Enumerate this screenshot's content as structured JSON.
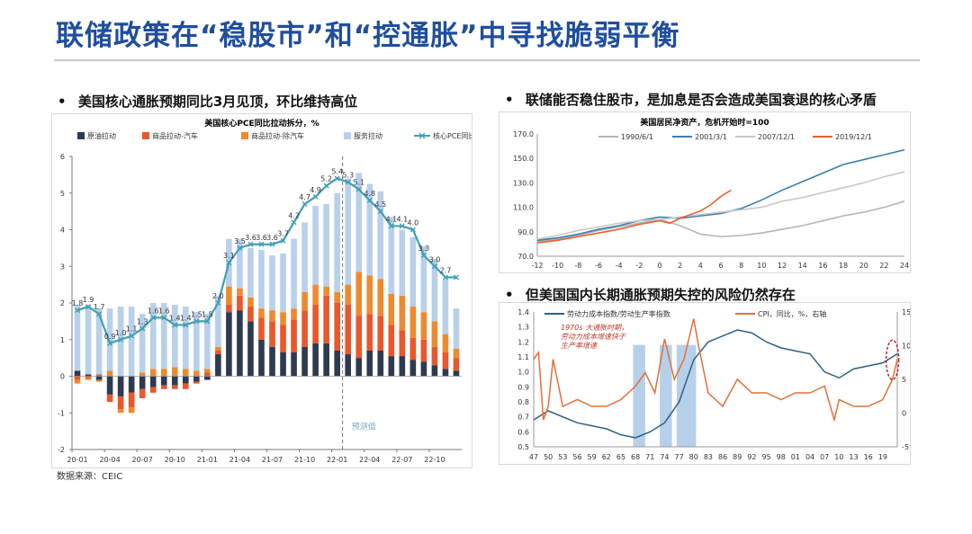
{
  "page": {
    "title": "联储政策在“稳股市”和“控通胀”中寻找脆弱平衡",
    "left_bullet": "美国核心通胀预期同比3月见顶，环比维持高位",
    "right_top_bullet": "联储能否稳住股市，是加息是否会造成美国衰退的核心矛盾",
    "right_bottom_bullet": "但美国国内长期通胀预期失控的风险仍然存在",
    "source": "数据来源：CEIC",
    "bullet_char": "•"
  },
  "chart_data": [
    {
      "type": "bar",
      "stacked": true,
      "title": "美国核心PCE同比拉动拆分，%",
      "categories": [
        "20-01",
        "20-02",
        "20-03",
        "20-04",
        "20-05",
        "20-06",
        "20-07",
        "20-08",
        "20-09",
        "20-10",
        "20-11",
        "20-12",
        "21-01",
        "21-02",
        "21-03",
        "21-04",
        "21-05",
        "21-06",
        "21-07",
        "21-08",
        "21-09",
        "21-10",
        "21-11",
        "21-12",
        "22-01",
        "22-02",
        "22-03",
        "22-04",
        "22-05",
        "22-06",
        "22-07",
        "22-08",
        "22-09",
        "22-10",
        "22-11",
        "22-12"
      ],
      "x_tick_labels": [
        "20-01",
        "20-04",
        "20-07",
        "20-10",
        "21-01",
        "21-04",
        "21-07",
        "21-10",
        "22-01",
        "22-04",
        "22-07",
        "22-10"
      ],
      "ylim": [
        -2,
        6
      ],
      "y_ticks": [
        -2,
        -1,
        0,
        1,
        2,
        3,
        4,
        5,
        6
      ],
      "legend": "top",
      "annotation": "预测值",
      "forecast_from": "22-02",
      "series": [
        {
          "name": "原油拉动",
          "color": "#2e3a4f",
          "values": [
            0.15,
            0.05,
            -0.1,
            -0.5,
            -0.55,
            -0.45,
            -0.35,
            -0.3,
            -0.25,
            -0.25,
            -0.2,
            -0.15,
            -0.1,
            0.6,
            1.75,
            1.8,
            1.5,
            1.0,
            0.8,
            0.65,
            0.65,
            0.8,
            0.9,
            0.9,
            0.7,
            0.6,
            0.5,
            0.7,
            0.7,
            0.55,
            0.55,
            0.45,
            0.4,
            0.3,
            0.2,
            0.15
          ]
        },
        {
          "name": "商品拉动-汽车",
          "color": "#e9572b",
          "values": [
            -0.1,
            -0.05,
            0.05,
            -0.2,
            -0.35,
            -0.4,
            -0.25,
            -0.15,
            -0.1,
            -0.1,
            -0.15,
            -0.05,
            0.1,
            0.1,
            0.2,
            0.4,
            0.4,
            0.6,
            0.7,
            0.75,
            0.9,
            1.0,
            1.05,
            1.3,
            1.3,
            1.35,
            1.15,
            1.0,
            0.95,
            0.85,
            0.7,
            0.6,
            0.6,
            0.5,
            0.45,
            0.35
          ]
        },
        {
          "name": "商品拉动-除汽车",
          "color": "#ee8a2e",
          "values": [
            -0.1,
            -0.05,
            -0.05,
            0.15,
            -0.1,
            -0.15,
            0.1,
            0.2,
            0.2,
            0.25,
            0.2,
            0.15,
            0.1,
            0.1,
            0.5,
            0.2,
            0.25,
            0.25,
            0.3,
            0.35,
            0.3,
            0.5,
            0.55,
            0.25,
            0.3,
            0.55,
            1.2,
            1.05,
            1.0,
            0.85,
            0.95,
            0.85,
            0.75,
            0.7,
            0.5,
            0.25
          ]
        },
        {
          "name": "服务拉动",
          "color": "#b8d0ea",
          "values": [
            1.8,
            1.9,
            1.8,
            1.7,
            1.9,
            1.9,
            1.6,
            1.8,
            1.8,
            1.7,
            1.7,
            1.6,
            1.5,
            1.4,
            1.3,
            1.35,
            1.35,
            1.6,
            1.5,
            1.6,
            1.9,
            1.9,
            2.15,
            2.25,
            2.7,
            2.9,
            2.7,
            2.5,
            2.4,
            2.1,
            1.8,
            1.9,
            1.8,
            1.7,
            1.5,
            1.1
          ]
        },
        {
          "name": "核心PCE同比",
          "color": "#3f9fb4",
          "type": "line",
          "values": [
            1.8,
            1.9,
            1.7,
            0.9,
            1.0,
            1.1,
            1.3,
            1.6,
            1.6,
            1.4,
            1.4,
            1.5,
            1.5,
            2.0,
            3.1,
            3.5,
            3.6,
            3.6,
            3.6,
            3.7,
            4.2,
            4.7,
            4.9,
            5.2,
            5.4,
            5.3,
            5.1,
            4.8,
            4.5,
            4.1,
            4.1,
            4.0,
            3.3,
            3.0,
            2.7,
            2.7
          ],
          "labels": [
            "1.8",
            "1.9",
            "1.7",
            "0.9",
            "1.0",
            "1.1",
            "1.3",
            "1.6",
            "1.6",
            "1.4",
            "1.4",
            "1.5",
            "1.5",
            "2.0",
            "3.1",
            "3.5",
            "3.6",
            "3.6",
            "3.6",
            "3.7",
            "4.2",
            "4.7",
            "4.9",
            "5.2",
            "5.4",
            "5.3",
            "5.1",
            "4.8",
            "4.5",
            "4.1",
            "4.1",
            "4.0",
            "3.3",
            "3.0",
            "2.7",
            ""
          ]
        }
      ]
    },
    {
      "type": "line",
      "title": "美国居民净资产，危机开始时=100",
      "xlim": [
        -12,
        24
      ],
      "x_ticks": [
        -12,
        -10,
        -8,
        -6,
        -4,
        -2,
        0,
        2,
        4,
        6,
        8,
        10,
        12,
        14,
        16,
        18,
        20,
        22,
        24
      ],
      "ylim": [
        70,
        170
      ],
      "y_ticks": [
        "70.0",
        "90.0",
        "110.0",
        "130.0",
        "150.0",
        "170.0"
      ],
      "legend": "top",
      "series": [
        {
          "name": "1990/6/1",
          "color": "#b5b5b5",
          "x": [
            -12,
            -10,
            -8,
            -6,
            -4,
            -2,
            0,
            2,
            4,
            6,
            8,
            10,
            12,
            14,
            16,
            18,
            20,
            22,
            24
          ],
          "values": [
            82,
            84,
            87,
            91,
            94,
            97,
            100,
            95,
            88,
            86,
            87,
            89,
            92,
            95,
            99,
            103,
            106,
            110,
            115
          ]
        },
        {
          "name": "2001/3/1",
          "color": "#3a7fae",
          "x": [
            -12,
            -10,
            -8,
            -6,
            -4,
            -2,
            0,
            2,
            4,
            6,
            8,
            10,
            12,
            14,
            16,
            18,
            20,
            22,
            24
          ],
          "values": [
            83,
            85,
            88,
            92,
            95,
            99,
            102,
            101,
            103,
            105,
            109,
            116,
            124,
            131,
            138,
            145,
            149,
            153,
            157
          ]
        },
        {
          "name": "2007/12/1",
          "color": "#c7c7c7",
          "x": [
            -12,
            -10,
            -8,
            -6,
            -4,
            -2,
            0,
            2,
            4,
            6,
            8,
            10,
            12,
            14,
            16,
            18,
            20,
            22,
            24
          ],
          "values": [
            84,
            87,
            91,
            94,
            97,
            99,
            100,
            102,
            104,
            106,
            108,
            110,
            115,
            118,
            122,
            126,
            130,
            135,
            139
          ]
        },
        {
          "name": "2019/12/1",
          "color": "#e8602c",
          "x": [
            -12,
            -10,
            -8,
            -6,
            -4,
            -2,
            0,
            1,
            2,
            3,
            4,
            5,
            6,
            7
          ],
          "values": [
            81,
            83,
            86,
            89,
            92,
            96,
            99,
            97,
            101,
            104,
            107,
            112,
            119,
            124
          ]
        }
      ]
    },
    {
      "type": "line",
      "dual_axis": true,
      "x_tick_labels": [
        "47",
        "50",
        "53",
        "56",
        "59",
        "62",
        "65",
        "68",
        "71",
        "74",
        "77",
        "80",
        "83",
        "86",
        "89",
        "92",
        "95",
        "98",
        "01",
        "04",
        "07",
        "10",
        "13",
        "16",
        "19"
      ],
      "x_range_years": [
        1947,
        2022
      ],
      "ylim_left": [
        0.5,
        1.4
      ],
      "y_ticks_left": [
        "0.5",
        "0.6",
        "0.7",
        "0.8",
        "0.9",
        "1.0",
        "1.1",
        "1.2",
        "1.3",
        "1.4"
      ],
      "ylim_right": [
        -5,
        15
      ],
      "y_ticks_right": [
        "-5",
        "0",
        "5",
        "10",
        "15"
      ],
      "legend": "top",
      "annotation": "1970s 大通胀时期，\n劳动力成本增速快于\n生产率增速",
      "shaded_periods": [
        [
          1967.5,
          1970
        ],
        [
          1973,
          1975.5
        ],
        [
          1976.5,
          1980.5
        ]
      ],
      "series": [
        {
          "name": "劳动力成本指数/劳动生产率指数",
          "axis": "left",
          "color": "#2e5f84",
          "x": [
            1947,
            1950,
            1953,
            1956,
            1959,
            1962,
            1965,
            1968,
            1971,
            1974,
            1977,
            1980,
            1983,
            1986,
            1989,
            1992,
            1995,
            1998,
            2001,
            2004,
            2007,
            2010,
            2013,
            2016,
            2019,
            2022
          ],
          "values": [
            0.68,
            0.74,
            0.7,
            0.66,
            0.64,
            0.62,
            0.58,
            0.56,
            0.6,
            0.66,
            0.8,
            1.08,
            1.2,
            1.24,
            1.28,
            1.26,
            1.2,
            1.16,
            1.14,
            1.12,
            1.0,
            0.96,
            1.02,
            1.04,
            1.06,
            1.12
          ]
        },
        {
          "name": "CPI，同比，%，右轴",
          "axis": "right",
          "color": "#e2703a",
          "x": [
            1947,
            1948,
            1949,
            1950,
            1951,
            1953,
            1956,
            1959,
            1962,
            1965,
            1968,
            1970,
            1972,
            1974,
            1976,
            1978,
            1980,
            1981,
            1983,
            1986,
            1989,
            1992,
            1995,
            1998,
            2001,
            2004,
            2007,
            2009,
            2010,
            2013,
            2016,
            2019,
            2021,
            2022
          ],
          "values": [
            8,
            9,
            -1,
            1,
            8,
            1,
            2,
            1,
            1,
            2,
            4,
            6,
            3,
            11,
            5,
            8,
            14,
            10,
            3,
            1,
            5,
            3,
            3,
            2,
            3,
            3,
            4,
            -1,
            2,
            1,
            1,
            2,
            5,
            8
          ]
        }
      ]
    }
  ]
}
